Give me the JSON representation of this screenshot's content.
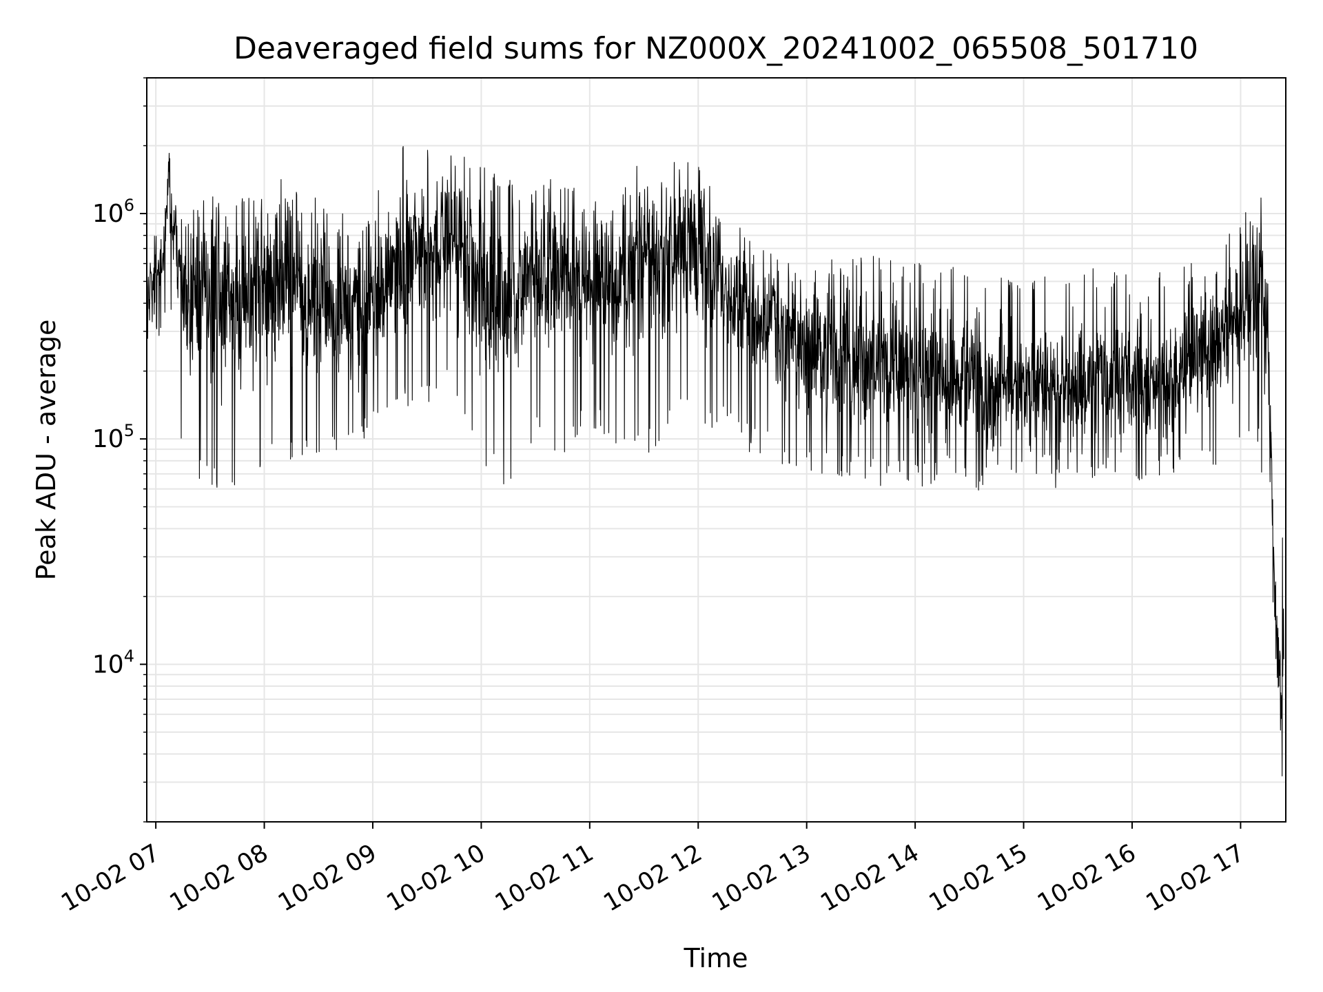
{
  "chart_data": {
    "type": "line",
    "title": "Deaveraged field sums for NZ000X_20241002_065508_501710",
    "xlabel": "Time",
    "ylabel": "Peak ADU - average",
    "yscale": "log",
    "ylim": [
      2000,
      4000000
    ],
    "xlim": [
      "2024-10-02 06:55",
      "2024-10-02 17:25"
    ],
    "x_ticks": [
      {
        "t": "2024-10-02 07:00",
        "label": "10-02 07"
      },
      {
        "t": "2024-10-02 08:00",
        "label": "10-02 08"
      },
      {
        "t": "2024-10-02 09:00",
        "label": "10-02 09"
      },
      {
        "t": "2024-10-02 10:00",
        "label": "10-02 10"
      },
      {
        "t": "2024-10-02 11:00",
        "label": "10-02 11"
      },
      {
        "t": "2024-10-02 12:00",
        "label": "10-02 12"
      },
      {
        "t": "2024-10-02 13:00",
        "label": "10-02 13"
      },
      {
        "t": "2024-10-02 14:00",
        "label": "10-02 14"
      },
      {
        "t": "2024-10-02 15:00",
        "label": "10-02 15"
      },
      {
        "t": "2024-10-02 16:00",
        "label": "10-02 16"
      },
      {
        "t": "2024-10-02 17:00",
        "label": "10-02 17"
      }
    ],
    "y_ticks": [
      {
        "value": 10000,
        "base": "10",
        "exp": "4"
      },
      {
        "value": 100000,
        "base": "10",
        "exp": "5"
      },
      {
        "value": 1000000,
        "base": "10",
        "exp": "6"
      }
    ],
    "grid": true,
    "line_color": "#000000",
    "grid_color": "#e6e6e6",
    "series": [
      {
        "x": [
          "2024-10-02 06:55",
          "2024-10-02 07:05",
          "2024-10-02 07:07",
          "2024-10-02 07:10",
          "2024-10-02 07:15",
          "2024-10-02 07:30",
          "2024-10-02 07:45",
          "2024-10-02 08:00",
          "2024-10-02 08:15",
          "2024-10-02 08:30",
          "2024-10-02 08:45",
          "2024-10-02 09:00",
          "2024-10-02 09:15",
          "2024-10-02 09:30",
          "2024-10-02 09:45",
          "2024-10-02 10:00",
          "2024-10-02 10:15",
          "2024-10-02 10:30",
          "2024-10-02 10:45",
          "2024-10-02 11:00",
          "2024-10-02 11:15",
          "2024-10-02 11:30",
          "2024-10-02 11:45",
          "2024-10-02 12:00",
          "2024-10-02 12:15",
          "2024-10-02 12:30",
          "2024-10-02 12:45",
          "2024-10-02 13:00",
          "2024-10-02 13:15",
          "2024-10-02 13:30",
          "2024-10-02 13:45",
          "2024-10-02 14:00",
          "2024-10-02 14:15",
          "2024-10-02 14:30",
          "2024-10-02 14:45",
          "2024-10-02 15:00",
          "2024-10-02 15:15",
          "2024-10-02 15:30",
          "2024-10-02 15:45",
          "2024-10-02 16:00",
          "2024-10-02 16:15",
          "2024-10-02 16:30",
          "2024-10-02 16:45",
          "2024-10-02 17:00",
          "2024-10-02 17:10",
          "2024-10-02 17:15",
          "2024-10-02 17:18",
          "2024-10-02 17:20",
          "2024-10-02 17:22",
          "2024-10-02 17:24"
        ],
        "center": [
          450000,
          700000,
          1500000,
          700000,
          450000,
          400000,
          420000,
          450000,
          520000,
          420000,
          350000,
          400000,
          650000,
          700000,
          800000,
          450000,
          380000,
          550000,
          500000,
          480000,
          520000,
          600000,
          650000,
          750000,
          450000,
          350000,
          300000,
          250000,
          240000,
          230000,
          210000,
          200000,
          190000,
          175000,
          165000,
          170000,
          165000,
          175000,
          190000,
          190000,
          180000,
          200000,
          260000,
          350000,
          550000,
          300000,
          40000,
          12000,
          8000,
          15000
        ],
        "low": [
          300000,
          350000,
          600000,
          300000,
          80000,
          70000,
          70000,
          80000,
          90000,
          100000,
          90000,
          120000,
          150000,
          150000,
          200000,
          90000,
          70000,
          110000,
          100000,
          130000,
          110000,
          90000,
          130000,
          140000,
          120000,
          100000,
          90000,
          80000,
          75000,
          75000,
          70000,
          70000,
          75000,
          70000,
          65000,
          70000,
          70000,
          75000,
          80000,
          75000,
          80000,
          80000,
          90000,
          90000,
          100000,
          50000,
          20000,
          6000,
          2800,
          3500
        ],
        "high": [
          650000,
          900000,
          2100000,
          1000000,
          1000000,
          1100000,
          1100000,
          1050000,
          1200000,
          1100000,
          900000,
          1000000,
          2000000,
          1800000,
          2300000,
          1500000,
          1300000,
          1200000,
          1300000,
          1100000,
          1200000,
          1200000,
          1400000,
          1600000,
          900000,
          700000,
          600000,
          550000,
          600000,
          600000,
          600000,
          550000,
          600000,
          500000,
          500000,
          520000,
          500000,
          480000,
          550000,
          500000,
          500000,
          550000,
          650000,
          900000,
          1400000,
          1000000,
          60000,
          30000,
          30000,
          40000
        ]
      }
    ]
  }
}
